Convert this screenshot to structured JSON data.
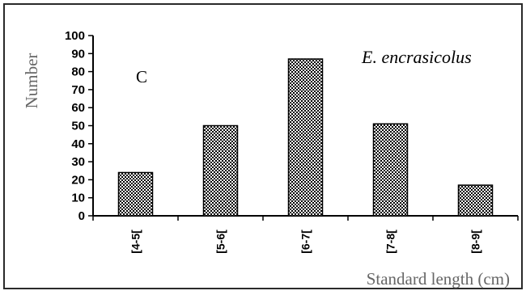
{
  "chart_data": {
    "type": "bar",
    "categories": [
      "[4-5[",
      "[5-6[",
      "[6-7[",
      "[7-8[",
      "[8-9["
    ],
    "values": [
      24,
      50,
      87,
      51,
      17
    ],
    "title": "",
    "panel_label": "C",
    "species": "E. encrasicolus",
    "xlabel": "Standard length (cm)",
    "ylabel": "Number",
    "ylim": [
      0,
      100
    ],
    "yticks": [
      0,
      10,
      20,
      30,
      40,
      50,
      60,
      70,
      80,
      90,
      100
    ],
    "grid": false,
    "bar_pattern": "checkerboard",
    "colors": {
      "bar_fill": "#000000",
      "bar_check": "#ffffff",
      "frame": "#2a2a2a",
      "axis_title": "#666666"
    }
  }
}
